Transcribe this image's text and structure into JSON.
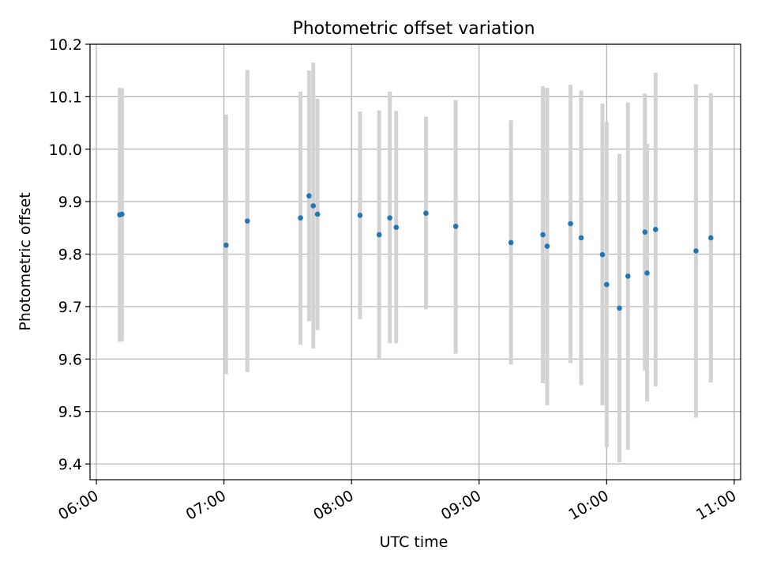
{
  "chart_data": {
    "type": "scatter",
    "title": "Photometric offset variation",
    "xlabel": "UTC time",
    "ylabel": "Photometric offset",
    "x_ticks": [
      "06:00",
      "07:00",
      "08:00",
      "09:00",
      "10:00",
      "11:00"
    ],
    "y_ticks": [
      "9.4",
      "9.5",
      "9.6",
      "9.7",
      "9.8",
      "9.9",
      "10.0",
      "10.1",
      "10.2"
    ],
    "xlim": [
      "05:57",
      "11:03"
    ],
    "ylim": [
      9.37,
      10.2
    ],
    "grid": true,
    "marker_color": "#1f77b4",
    "errorbar_color": "#d3d3d3",
    "points": [
      {
        "t": "06:11",
        "y": 9.875,
        "lo": 9.633,
        "hi": 10.117
      },
      {
        "t": "06:12",
        "y": 9.876,
        "lo": 9.634,
        "hi": 10.116
      },
      {
        "t": "07:01",
        "y": 9.817,
        "lo": 9.571,
        "hi": 10.066
      },
      {
        "t": "07:11",
        "y": 9.863,
        "lo": 9.575,
        "hi": 10.151
      },
      {
        "t": "07:36",
        "y": 9.869,
        "lo": 9.627,
        "hi": 10.11
      },
      {
        "t": "07:40",
        "y": 9.911,
        "lo": 9.672,
        "hi": 10.15
      },
      {
        "t": "07:42",
        "y": 9.892,
        "lo": 9.62,
        "hi": 10.165
      },
      {
        "t": "07:44",
        "y": 9.876,
        "lo": 9.655,
        "hi": 10.096
      },
      {
        "t": "08:04",
        "y": 9.874,
        "lo": 9.676,
        "hi": 10.072
      },
      {
        "t": "08:13",
        "y": 9.837,
        "lo": 9.6,
        "hi": 10.074
      },
      {
        "t": "08:18",
        "y": 9.869,
        "lo": 9.63,
        "hi": 10.11
      },
      {
        "t": "08:21",
        "y": 9.851,
        "lo": 9.63,
        "hi": 10.073
      },
      {
        "t": "08:35",
        "y": 9.878,
        "lo": 9.695,
        "hi": 10.062
      },
      {
        "t": "08:49",
        "y": 9.853,
        "lo": 9.61,
        "hi": 10.094
      },
      {
        "t": "09:15",
        "y": 9.822,
        "lo": 9.59,
        "hi": 10.055
      },
      {
        "t": "09:30",
        "y": 9.837,
        "lo": 9.554,
        "hi": 10.12
      },
      {
        "t": "09:32",
        "y": 9.815,
        "lo": 9.512,
        "hi": 10.117
      },
      {
        "t": "09:43",
        "y": 9.858,
        "lo": 9.592,
        "hi": 10.123
      },
      {
        "t": "09:48",
        "y": 9.831,
        "lo": 9.55,
        "hi": 10.112
      },
      {
        "t": "09:58",
        "y": 9.799,
        "lo": 9.512,
        "hi": 10.087
      },
      {
        "t": "10:00",
        "y": 9.742,
        "lo": 9.432,
        "hi": 10.052
      },
      {
        "t": "10:06",
        "y": 9.697,
        "lo": 9.403,
        "hi": 9.991
      },
      {
        "t": "10:10",
        "y": 9.758,
        "lo": 9.427,
        "hi": 10.089
      },
      {
        "t": "10:18",
        "y": 9.842,
        "lo": 9.578,
        "hi": 10.106
      },
      {
        "t": "10:19",
        "y": 9.764,
        "lo": 9.519,
        "hi": 10.01
      },
      {
        "t": "10:23",
        "y": 9.847,
        "lo": 9.548,
        "hi": 10.146
      },
      {
        "t": "10:42",
        "y": 9.806,
        "lo": 9.488,
        "hi": 10.124
      },
      {
        "t": "10:49",
        "y": 9.831,
        "lo": 9.555,
        "hi": 10.107
      }
    ]
  }
}
